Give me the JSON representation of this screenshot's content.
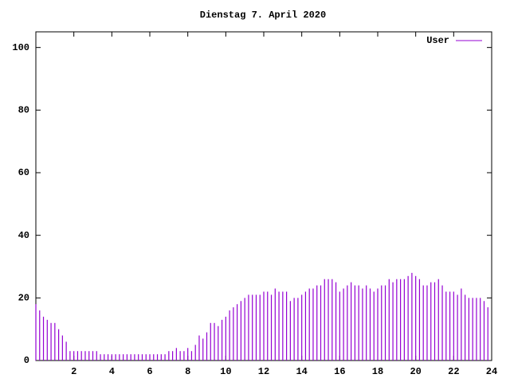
{
  "chart_data": {
    "type": "impulse",
    "title": "Dienstag 7. April 2020",
    "x": [
      0,
      0.2,
      0.4,
      0.6,
      0.8,
      1,
      1.2,
      1.4,
      1.6,
      1.8,
      2,
      2.2,
      2.4,
      2.6,
      2.8,
      3,
      3.2,
      3.4,
      3.6,
      3.8,
      4,
      4.2,
      4.4,
      4.6,
      4.8,
      5,
      5.2,
      5.4,
      5.6,
      5.8,
      6,
      6.2,
      6.4,
      6.6,
      6.8,
      7,
      7.2,
      7.4,
      7.6,
      7.8,
      8,
      8.2,
      8.4,
      8.6,
      8.8,
      9,
      9.2,
      9.4,
      9.6,
      9.8,
      10,
      10.2,
      10.4,
      10.6,
      10.8,
      11,
      11.2,
      11.4,
      11.6,
      11.8,
      12,
      12.2,
      12.4,
      12.6,
      12.8,
      13,
      13.2,
      13.4,
      13.6,
      13.8,
      14,
      14.2,
      14.4,
      14.6,
      14.8,
      15,
      15.2,
      15.4,
      15.6,
      15.8,
      16,
      16.2,
      16.4,
      16.6,
      16.8,
      17,
      17.2,
      17.4,
      17.6,
      17.8,
      18,
      18.2,
      18.4,
      18.6,
      18.8,
      19,
      19.2,
      19.4,
      19.6,
      19.8,
      20,
      20.2,
      20.4,
      20.6,
      20.8,
      21,
      21.2,
      21.4,
      21.6,
      21.8,
      22,
      22.2,
      22.4,
      22.6,
      22.8,
      23,
      23.2,
      23.4,
      23.6,
      23.8
    ],
    "series": [
      {
        "name": "User",
        "color": "#9400d3",
        "values": [
          18,
          16,
          14,
          13,
          12,
          12,
          10,
          8,
          6,
          3,
          3,
          3,
          3,
          3,
          3,
          3,
          3,
          2,
          2,
          2,
          2,
          2,
          2,
          2,
          2,
          2,
          2,
          2,
          2,
          2,
          2,
          2,
          2,
          2,
          2,
          3,
          3,
          4,
          3,
          3,
          4,
          3,
          5,
          8,
          7,
          9,
          12,
          12,
          11,
          13,
          14,
          16,
          17,
          18,
          19,
          20,
          21,
          21,
          21,
          21,
          22,
          22,
          21,
          23,
          22,
          22,
          22,
          19,
          20,
          20,
          21,
          22,
          23,
          23,
          24,
          24,
          26,
          26,
          26,
          25,
          22,
          23,
          24,
          25,
          24,
          24,
          23,
          24,
          23,
          22,
          23,
          24,
          24,
          26,
          25,
          26,
          26,
          26,
          27,
          28,
          27,
          26,
          24,
          24,
          25,
          25,
          26,
          24,
          22,
          22,
          22,
          21,
          23,
          21,
          20,
          20,
          20,
          20,
          19,
          17
        ]
      }
    ],
    "xlim": [
      0,
      24
    ],
    "ylim": [
      0,
      105
    ],
    "xticks": [
      2,
      4,
      6,
      8,
      10,
      12,
      14,
      16,
      18,
      20,
      22,
      24
    ],
    "yticks": [
      0,
      20,
      40,
      60,
      80,
      100
    ],
    "legend": "top-right"
  }
}
